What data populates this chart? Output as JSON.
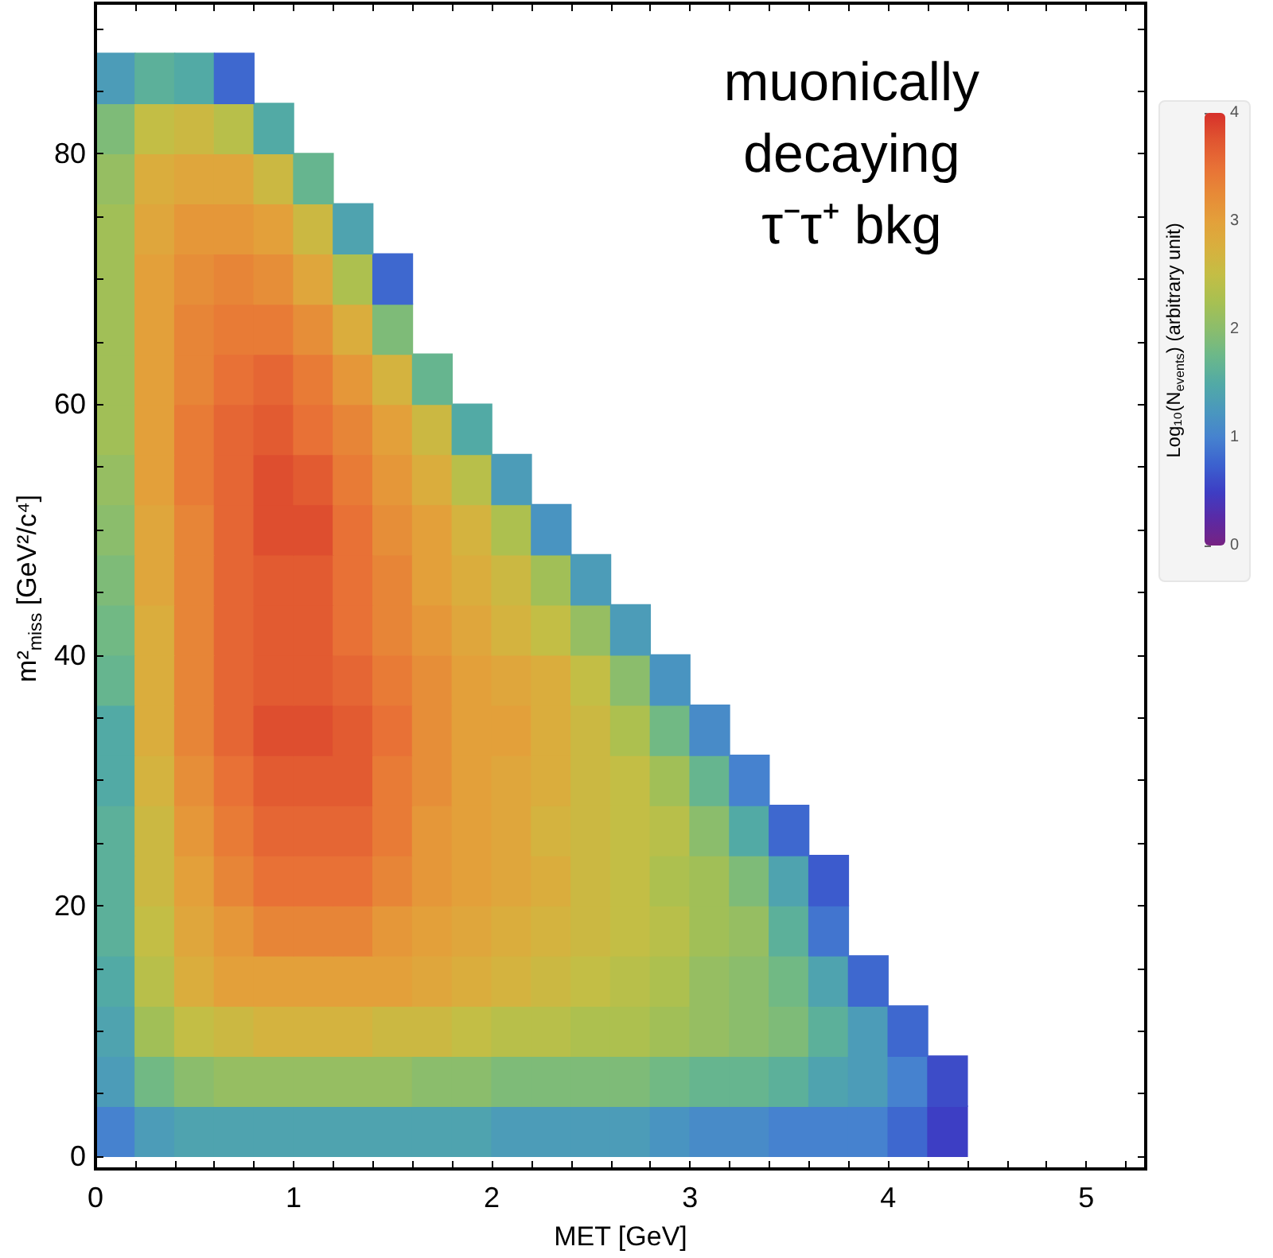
{
  "chart_data": {
    "type": "scatter",
    "title": "muonically decaying τ⁻τ⁺ bkg",
    "xlabel": "MET [GeV]",
    "ylabel": "m²$_{miss}$ [GeV²/c⁴]",
    "clabel": "Log₁₀(N$_{events}$) (arbitrary unit)",
    "marker": "square",
    "xlim": [
      0,
      5.3
    ],
    "xticks": [
      0,
      {
        "value": 0.2,
        "label": null
      },
      {
        "value": 0.4,
        "label": null
      },
      {
        "value": 0.6,
        "label": null
      },
      {
        "value": 0.8,
        "label": null
      },
      1,
      {
        "value": 1.2,
        "label": null
      },
      {
        "value": 1.4,
        "label": null
      },
      {
        "value": 1.6,
        "label": null
      },
      {
        "value": 1.8,
        "label": null
      },
      2,
      {
        "value": 2.2,
        "label": null
      },
      {
        "value": 2.4,
        "label": null
      },
      {
        "value": 2.6,
        "label": null
      },
      {
        "value": 2.8,
        "label": null
      },
      3,
      {
        "value": 3.2,
        "label": null
      },
      {
        "value": 3.4,
        "label": null
      },
      {
        "value": 3.6,
        "label": null
      },
      {
        "value": 3.8,
        "label": null
      },
      4,
      {
        "value": 4.2,
        "label": null
      },
      {
        "value": 4.4,
        "label": null
      },
      {
        "value": 4.6,
        "label": null
      },
      {
        "value": 4.8,
        "label": null
      },
      5,
      {
        "value": 5.2,
        "label": null
      }
    ],
    "ylim": [
      -1,
      92
    ],
    "yticks": [
      0,
      {
        "value": 5,
        "label": null
      },
      {
        "value": 10,
        "label": null
      },
      {
        "value": 15,
        "label": null
      },
      20,
      {
        "value": 25,
        "label": null
      },
      {
        "value": 30,
        "label": null
      },
      {
        "value": 35,
        "label": null
      },
      40,
      {
        "value": 45,
        "label": null
      },
      {
        "value": 50,
        "label": null
      },
      {
        "value": 55,
        "label": null
      },
      60,
      {
        "value": 65,
        "label": null
      },
      {
        "value": 70,
        "label": null
      },
      {
        "value": 75,
        "label": null
      },
      80,
      {
        "value": 85,
        "label": null
      },
      {
        "value": 90,
        "label": null
      }
    ],
    "clim": [
      0,
      4
    ],
    "cticks": [
      0,
      1,
      2,
      3,
      4
    ],
    "x": [
      0.1,
      0.3,
      0.5,
      0.7,
      0.9,
      1.1,
      1.3,
      1.5,
      1.7,
      1.9,
      2.1,
      2.3,
      2.5,
      2.7,
      2.9,
      3.1,
      3.3,
      3.5,
      3.7,
      3.9,
      4.1,
      4.3,
      0.1,
      0.3,
      0.5,
      0.7,
      0.9,
      1.1,
      1.3,
      1.5,
      1.7,
      1.9,
      2.1,
      2.3,
      2.5,
      2.7,
      2.9,
      3.1,
      3.3,
      3.5,
      3.7,
      3.9,
      4.1,
      4.3,
      0.1,
      0.3,
      0.5,
      0.7,
      0.9,
      1.1,
      1.3,
      1.5,
      1.7,
      1.9,
      2.1,
      2.3,
      2.5,
      2.7,
      2.9,
      3.1,
      3.3,
      3.5,
      3.7,
      3.9,
      4.1,
      0.1,
      0.3,
      0.5,
      0.7,
      0.9,
      1.1,
      1.3,
      1.5,
      1.7,
      1.9,
      2.1,
      2.3,
      2.5,
      2.7,
      2.9,
      3.1,
      3.3,
      3.5,
      3.7,
      3.9,
      0.1,
      0.3,
      0.5,
      0.7,
      0.9,
      1.1,
      1.3,
      1.5,
      1.7,
      1.9,
      2.1,
      2.3,
      2.5,
      2.7,
      2.9,
      3.1,
      3.3,
      3.5,
      3.7,
      0.1,
      0.3,
      0.5,
      0.7,
      0.9,
      1.1,
      1.3,
      1.5,
      1.7,
      1.9,
      2.1,
      2.3,
      2.5,
      2.7,
      2.9,
      3.1,
      3.3,
      3.5,
      3.7,
      0.1,
      0.3,
      0.5,
      0.7,
      0.9,
      1.1,
      1.3,
      1.5,
      1.7,
      1.9,
      2.1,
      2.3,
      2.5,
      2.7,
      2.9,
      3.1,
      3.3,
      3.5,
      0.1,
      0.3,
      0.5,
      0.7,
      0.9,
      1.1,
      1.3,
      1.5,
      1.7,
      1.9,
      2.1,
      2.3,
      2.5,
      2.7,
      2.9,
      3.1,
      3.3,
      0.1,
      0.3,
      0.5,
      0.7,
      0.9,
      1.1,
      1.3,
      1.5,
      1.7,
      1.9,
      2.1,
      2.3,
      2.5,
      2.7,
      2.9,
      3.1,
      0.1,
      0.3,
      0.5,
      0.7,
      0.9,
      1.1,
      1.3,
      1.5,
      1.7,
      1.9,
      2.1,
      2.3,
      2.5,
      2.7,
      2.9,
      0.1,
      0.3,
      0.5,
      0.7,
      0.9,
      1.1,
      1.3,
      1.5,
      1.7,
      1.9,
      2.1,
      2.3,
      2.5,
      2.7,
      0.1,
      0.3,
      0.5,
      0.7,
      0.9,
      1.1,
      1.3,
      1.5,
      1.7,
      1.9,
      2.1,
      2.3,
      2.5,
      0.1,
      0.3,
      0.5,
      0.7,
      0.9,
      1.1,
      1.3,
      1.5,
      1.7,
      1.9,
      2.1,
      2.3,
      0.1,
      0.3,
      0.5,
      0.7,
      0.9,
      1.1,
      1.3,
      1.5,
      1.7,
      1.9,
      2.1,
      0.1,
      0.3,
      0.5,
      0.7,
      0.9,
      1.1,
      1.3,
      1.5,
      1.7,
      1.9,
      0.1,
      0.3,
      0.5,
      0.7,
      0.9,
      1.1,
      1.3,
      1.5,
      1.7,
      0.1,
      0.3,
      0.5,
      0.7,
      0.9,
      1.1,
      1.3,
      1.5,
      0.1,
      0.3,
      0.5,
      0.7,
      0.9,
      1.1,
      1.3,
      1.5,
      0.1,
      0.3,
      0.5,
      0.7,
      0.9,
      1.1,
      1.3,
      0.1,
      0.3,
      0.5,
      0.7,
      0.9,
      1.1,
      0.1,
      0.3,
      0.5,
      0.7,
      0.9,
      0.1,
      0.3,
      0.5,
      0.7
    ],
    "values": [
      2,
      2,
      2,
      2,
      2,
      2,
      2,
      2,
      2,
      2,
      2,
      2,
      2,
      2,
      2,
      2,
      2,
      2,
      2,
      2,
      2,
      2,
      6,
      6,
      6,
      6,
      6,
      6,
      6,
      6,
      6,
      6,
      6,
      6,
      6,
      6,
      6,
      6,
      6,
      6,
      6,
      6,
      6,
      6,
      10,
      10,
      10,
      10,
      10,
      10,
      10,
      10,
      10,
      10,
      10,
      10,
      10,
      10,
      10,
      10,
      10,
      10,
      10,
      10,
      10,
      14,
      14,
      14,
      14,
      14,
      14,
      14,
      14,
      14,
      14,
      14,
      14,
      14,
      14,
      14,
      14,
      14,
      14,
      14,
      14,
      18,
      18,
      18,
      18,
      18,
      18,
      18,
      18,
      18,
      18,
      18,
      18,
      18,
      18,
      18,
      18,
      18,
      18,
      18,
      22,
      22,
      22,
      22,
      22,
      22,
      22,
      22,
      22,
      22,
      22,
      22,
      22,
      22,
      22,
      22,
      22,
      22,
      22,
      26,
      26,
      26,
      26,
      26,
      26,
      26,
      26,
      26,
      26,
      26,
      26,
      26,
      26,
      26,
      26,
      26,
      26,
      30,
      30,
      30,
      30,
      30,
      30,
      30,
      30,
      30,
      30,
      30,
      30,
      30,
      30,
      30,
      30,
      30,
      34,
      34,
      34,
      34,
      34,
      34,
      34,
      34,
      34,
      34,
      34,
      34,
      34,
      34,
      34,
      34,
      38,
      38,
      38,
      38,
      38,
      38,
      38,
      38,
      38,
      38,
      38,
      38,
      38,
      38,
      38,
      42,
      42,
      42,
      42,
      42,
      42,
      42,
      42,
      42,
      42,
      42,
      42,
      42,
      42,
      46,
      46,
      46,
      46,
      46,
      46,
      46,
      46,
      46,
      46,
      46,
      46,
      46,
      50,
      50,
      50,
      50,
      50,
      50,
      50,
      50,
      50,
      50,
      50,
      50,
      54,
      54,
      54,
      54,
      54,
      54,
      54,
      54,
      54,
      54,
      54,
      58,
      58,
      58,
      58,
      58,
      58,
      58,
      58,
      58,
      58,
      62,
      62,
      62,
      62,
      62,
      62,
      62,
      62,
      62,
      66,
      66,
      66,
      66,
      66,
      66,
      66,
      66,
      70,
      70,
      70,
      70,
      70,
      70,
      70,
      70,
      74,
      74,
      74,
      74,
      74,
      74,
      74,
      78,
      78,
      78,
      78,
      78,
      78,
      82,
      82,
      82,
      82,
      82,
      86,
      86,
      86,
      86
    ],
    "cvalues": [
      1.0,
      1.3,
      1.4,
      1.4,
      1.4,
      1.4,
      1.4,
      1.4,
      1.4,
      1.4,
      1.3,
      1.3,
      1.3,
      1.3,
      1.2,
      1.1,
      1.1,
      1.0,
      1.0,
      1.0,
      0.8,
      0.5,
      1.3,
      1.8,
      2.0,
      2.1,
      2.1,
      2.1,
      2.1,
      2.1,
      2.0,
      2.0,
      1.9,
      1.9,
      1.9,
      1.9,
      1.8,
      1.7,
      1.7,
      1.6,
      1.4,
      1.3,
      1.0,
      0.6,
      1.4,
      2.2,
      2.5,
      2.6,
      2.7,
      2.7,
      2.7,
      2.6,
      2.6,
      2.5,
      2.4,
      2.4,
      2.3,
      2.3,
      2.2,
      2.1,
      2.0,
      1.9,
      1.6,
      1.3,
      0.8,
      1.5,
      2.4,
      2.8,
      3.0,
      3.0,
      3.0,
      3.0,
      3.0,
      2.9,
      2.8,
      2.7,
      2.6,
      2.5,
      2.4,
      2.3,
      2.1,
      2.0,
      1.8,
      1.4,
      0.8,
      1.6,
      2.5,
      2.9,
      3.1,
      3.3,
      3.3,
      3.3,
      3.1,
      3.0,
      2.9,
      2.8,
      2.7,
      2.6,
      2.5,
      2.4,
      2.2,
      2.1,
      1.6,
      0.9,
      1.6,
      2.6,
      3.0,
      3.3,
      3.5,
      3.5,
      3.5,
      3.3,
      3.1,
      3.0,
      2.9,
      2.8,
      2.6,
      2.5,
      2.3,
      2.2,
      1.9,
      1.4,
      0.7,
      1.6,
      2.6,
      3.1,
      3.4,
      3.6,
      3.6,
      3.6,
      3.4,
      3.1,
      3.0,
      2.9,
      2.7,
      2.6,
      2.5,
      2.4,
      2.0,
      1.5,
      0.8,
      1.5,
      2.7,
      3.2,
      3.5,
      3.7,
      3.7,
      3.7,
      3.4,
      3.2,
      3.0,
      2.9,
      2.8,
      2.6,
      2.5,
      2.2,
      1.7,
      1.0,
      1.5,
      2.8,
      3.3,
      3.6,
      3.8,
      3.8,
      3.7,
      3.5,
      3.2,
      3.0,
      3.0,
      2.8,
      2.6,
      2.3,
      1.8,
      1.1,
      1.7,
      2.8,
      3.3,
      3.6,
      3.7,
      3.7,
      3.6,
      3.4,
      3.2,
      3.0,
      2.9,
      2.8,
      2.5,
      2.0,
      1.2,
      1.8,
      2.8,
      3.3,
      3.6,
      3.7,
      3.7,
      3.5,
      3.3,
      3.1,
      2.9,
      2.7,
      2.5,
      2.1,
      1.3,
      1.9,
      2.9,
      3.3,
      3.6,
      3.7,
      3.7,
      3.5,
      3.3,
      3.0,
      2.8,
      2.6,
      2.2,
      1.3,
      2.0,
      2.9,
      3.3,
      3.6,
      3.8,
      3.8,
      3.5,
      3.2,
      3.0,
      2.7,
      2.3,
      1.2,
      2.1,
      3.0,
      3.4,
      3.6,
      3.8,
      3.7,
      3.4,
      3.1,
      2.8,
      2.4,
      1.3,
      2.2,
      3.0,
      3.4,
      3.6,
      3.7,
      3.5,
      3.3,
      3.0,
      2.6,
      1.5,
      2.2,
      3.0,
      3.3,
      3.5,
      3.6,
      3.4,
      3.1,
      2.7,
      1.7,
      2.2,
      3.0,
      3.3,
      3.4,
      3.4,
      3.2,
      2.8,
      1.9,
      2.2,
      3.0,
      3.2,
      3.3,
      3.2,
      2.9,
      2.3,
      0.8,
      2.2,
      2.9,
      3.1,
      3.1,
      3.0,
      2.6,
      1.4,
      2.1,
      2.8,
      2.9,
      2.9,
      2.6,
      1.7,
      1.9,
      2.5,
      2.6,
      2.4,
      1.5,
      1.3,
      1.6,
      1.5,
      0.8
    ]
  }
}
